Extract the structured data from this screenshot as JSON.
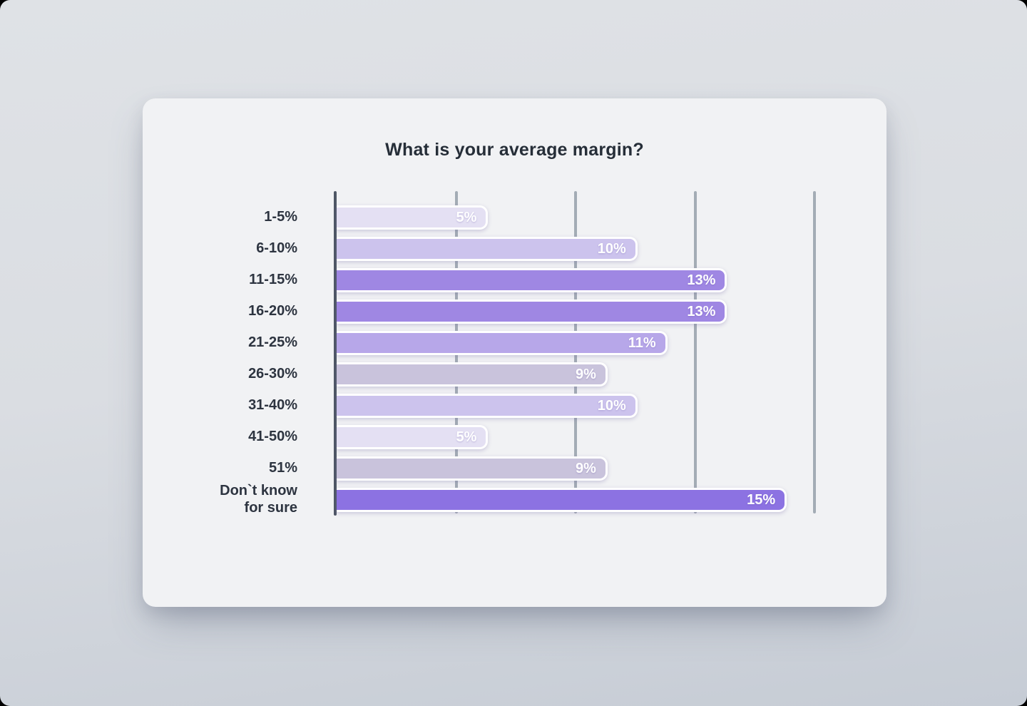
{
  "page": {
    "background_top": "#dfe2e6",
    "background_bottom": "#c6ccd5",
    "card_background": "#f1f2f4"
  },
  "chart_data": {
    "type": "bar",
    "orientation": "horizontal",
    "title": "What is your average margin?",
    "xlabel": "",
    "ylabel": "",
    "categories": [
      "1-5%",
      "6-10%",
      "11-15%",
      "16-20%",
      "21-25%",
      "26-30%",
      "31-40%",
      "41-50%",
      "51%",
      "Don`t know\nfor sure"
    ],
    "values": [
      5,
      10,
      13,
      13,
      11,
      9,
      10,
      5,
      9,
      15
    ],
    "value_labels": [
      "5%",
      "10%",
      "13%",
      "13%",
      "11%",
      "9%",
      "10%",
      "5%",
      "9%",
      "15%"
    ],
    "bar_colors": [
      "#e4e0f3",
      "#ccc3ed",
      "#9f87e3",
      "#9f87e3",
      "#b7a7e9",
      "#c9c3dc",
      "#ccc3ed",
      "#e4e0f3",
      "#c9c3dc",
      "#8c72e2"
    ],
    "xlim": [
      0,
      16
    ],
    "gridlines_x": [
      4,
      8,
      12,
      16
    ],
    "grid_on": true,
    "legend": "none",
    "colors": {
      "axis": "#4e5765",
      "gridline": "#a3acb5",
      "category_label": "#2d3440",
      "value_label": "#ffffff",
      "title": "#262e38"
    }
  }
}
